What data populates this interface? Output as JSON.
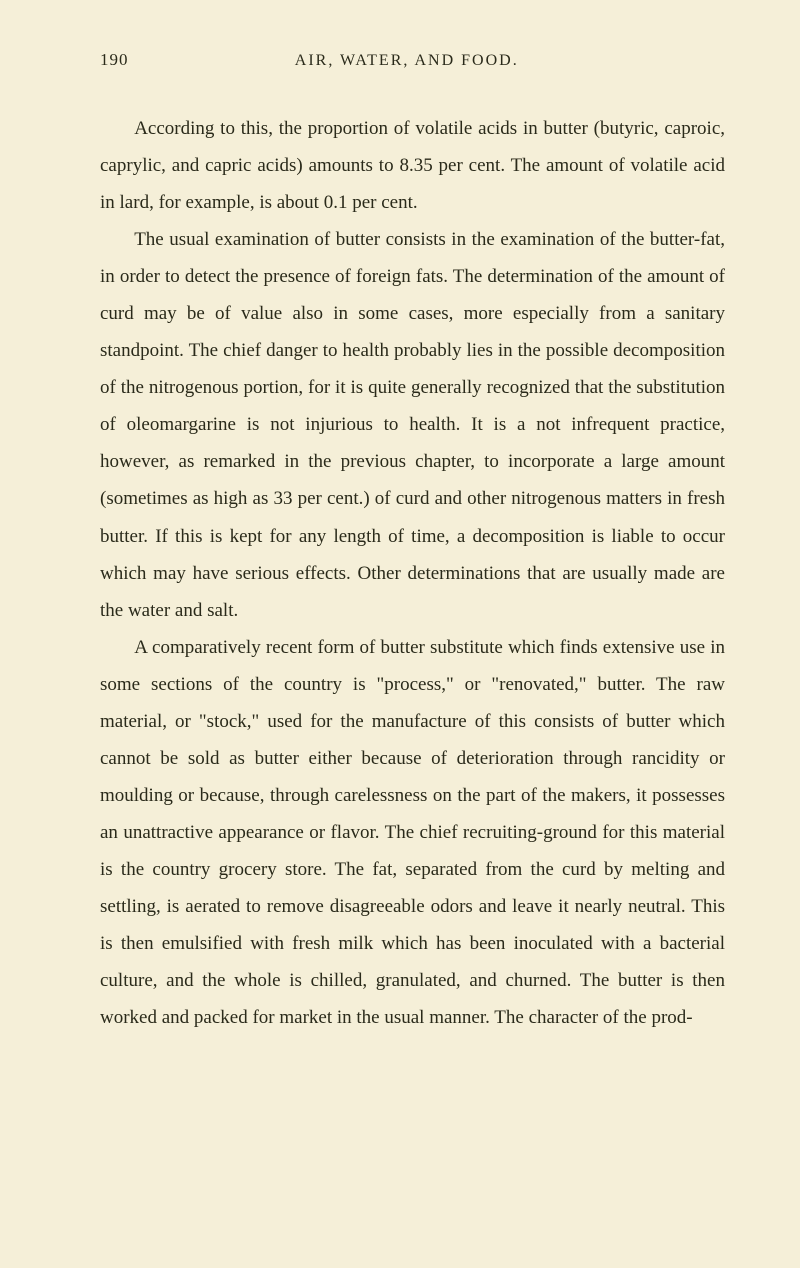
{
  "page": {
    "number": "190",
    "chapterTitle": "AIR, WATER, AND FOOD.",
    "paragraphs": [
      "According to this, the proportion of volatile acids in butter (butyric, caproic, caprylic, and capric acids) amounts to 8.35 per cent. The amount of volatile acid in lard, for example, is about 0.1 per cent.",
      "The usual examination of butter consists in the examination of the butter-fat, in order to detect the presence of foreign fats. The determination of the amount of curd may be of value also in some cases, more especially from a sanitary standpoint. The chief danger to health probably lies in the possible decomposition of the nitrogenous portion, for it is quite generally recognized that the substitution of oleomargarine is not injurious to health. It is a not infrequent practice, however, as remarked in the previous chapter, to incorporate a large amount (sometimes as high as 33 per cent.) of curd and other nitrogenous matters in fresh butter. If this is kept for any length of time, a decomposition is liable to occur which may have serious effects. Other determinations that are usually made are the water and salt.",
      "A comparatively recent form of butter substitute which finds extensive use in some sections of the country is \"process,\" or \"renovated,\" butter. The raw material, or \"stock,\" used for the manufacture of this consists of butter which cannot be sold as butter either because of deterioration through rancidity or moulding or because, through carelessness on the part of the makers, it possesses an unattractive appearance or flavor. The chief recruiting-ground for this material is the country grocery store. The fat, separated from the curd by melting and settling, is aerated to remove disagreeable odors and leave it nearly neutral. This is then emulsified with fresh milk which has been inoculated with a bacterial culture, and the whole is chilled, granulated, and churned. The butter is then worked and packed for market in the usual manner. The character of the prod-"
    ]
  },
  "colors": {
    "background": "#f5efd8",
    "text": "#2a2a1a"
  },
  "typography": {
    "bodyFontSize": 19,
    "headerFontSize": 17,
    "lineHeight": 1.95,
    "textIndent": "1.8em"
  }
}
